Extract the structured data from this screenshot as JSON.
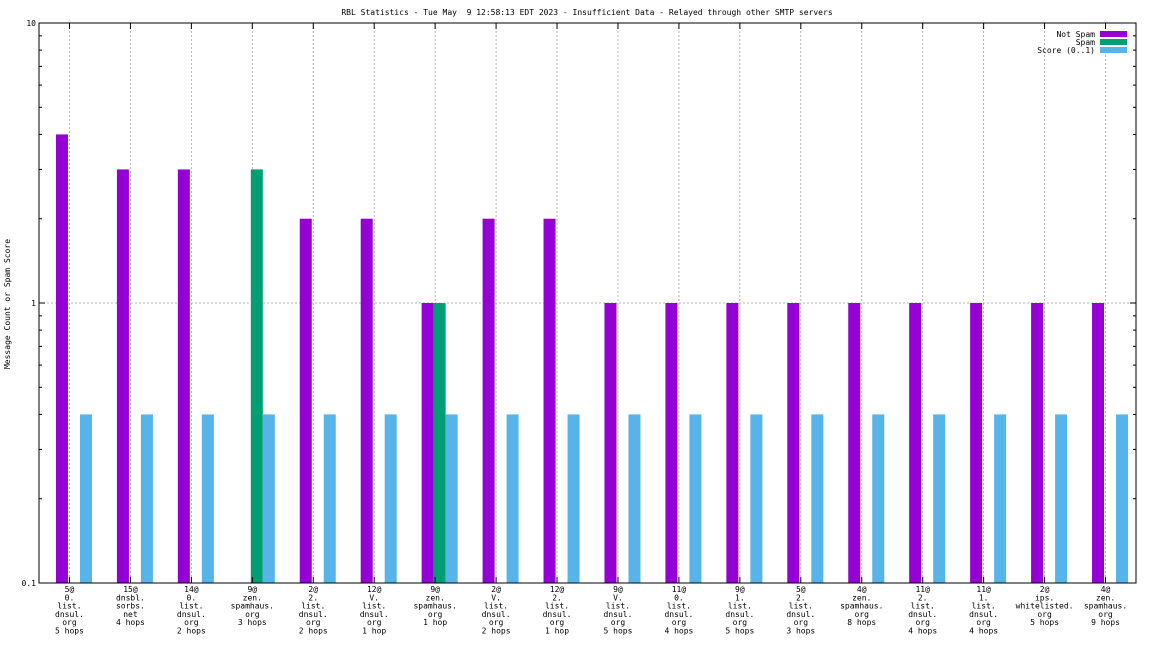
{
  "chart_data": {
    "type": "bar",
    "title": "RBL Statistics - Tue May  9 12:58:13 EDT 2023 - Insufficient Data - Relayed through other SMTP servers",
    "ylabel": "Message Count or Spam Score",
    "xlabel": "",
    "yscale": "log",
    "ylim": [
      0.1,
      10
    ],
    "yticks": [
      {
        "value": 0.1,
        "label": "0.1"
      },
      {
        "value": 1,
        "label": "1"
      },
      {
        "value": 10,
        "label": "10"
      }
    ],
    "grid": true,
    "legend_position": "top-right",
    "categories": [
      [
        "5@",
        "0.",
        "list.",
        "dnsul.",
        "org",
        "5 hops"
      ],
      [
        "15@",
        "dnsbl.",
        "sorbs.",
        "net",
        "4 hops"
      ],
      [
        "14@",
        "0.",
        "list.",
        "dnsul.",
        "org",
        "2 hops"
      ],
      [
        "9@",
        "zen.",
        "spamhaus.",
        "org",
        "3 hops"
      ],
      [
        "2@",
        "2.",
        "list.",
        "dnsul.",
        "org",
        "2 hops"
      ],
      [
        "12@",
        "V.",
        "list.",
        "dnsul.",
        "org",
        "1 hop"
      ],
      [
        "9@",
        "zen.",
        "spamhaus.",
        "org",
        "1 hop"
      ],
      [
        "2@",
        "V.",
        "list.",
        "dnsul.",
        "org",
        "2 hops"
      ],
      [
        "12@",
        "2.",
        "list.",
        "dnsul.",
        "org",
        "1 hop"
      ],
      [
        "9@",
        "V.",
        "list.",
        "dnsul.",
        "org",
        "5 hops"
      ],
      [
        "11@",
        "0.",
        "list.",
        "dnsul.",
        "org",
        "4 hops"
      ],
      [
        "9@",
        "1.",
        "list.",
        "dnsul.",
        "org",
        "5 hops"
      ],
      [
        "5@",
        "2.",
        "list.",
        "dnsul.",
        "org",
        "3 hops"
      ],
      [
        "4@",
        "zen.",
        "spamhaus.",
        "org",
        "8 hops"
      ],
      [
        "11@",
        "2.",
        "list.",
        "dnsul.",
        "org",
        "4 hops"
      ],
      [
        "11@",
        "1.",
        "list.",
        "dnsul.",
        "org",
        "4 hops"
      ],
      [
        "2@",
        "ips.",
        "whitelisted.",
        "org",
        "5 hops"
      ],
      [
        "4@",
        "zen.",
        "spamhaus.",
        "org",
        "9 hops"
      ]
    ],
    "series": [
      {
        "name": "Not Spam",
        "color": "#9400d3",
        "values": [
          4,
          3,
          3,
          null,
          2,
          2,
          1,
          2,
          2,
          1,
          1,
          1,
          1,
          1,
          1,
          1,
          1,
          1
        ]
      },
      {
        "name": "Spam",
        "color": "#009e73",
        "values": [
          null,
          null,
          null,
          3,
          null,
          null,
          1,
          null,
          null,
          null,
          null,
          null,
          null,
          null,
          null,
          null,
          null,
          null
        ]
      },
      {
        "name": "Score (0..1)",
        "color": "#56b4e9",
        "values": [
          0.4,
          0.4,
          0.4,
          0.4,
          0.4,
          0.4,
          0.4,
          0.4,
          0.4,
          0.4,
          0.4,
          0.4,
          0.4,
          0.4,
          0.4,
          0.4,
          0.4,
          0.4
        ]
      }
    ]
  }
}
